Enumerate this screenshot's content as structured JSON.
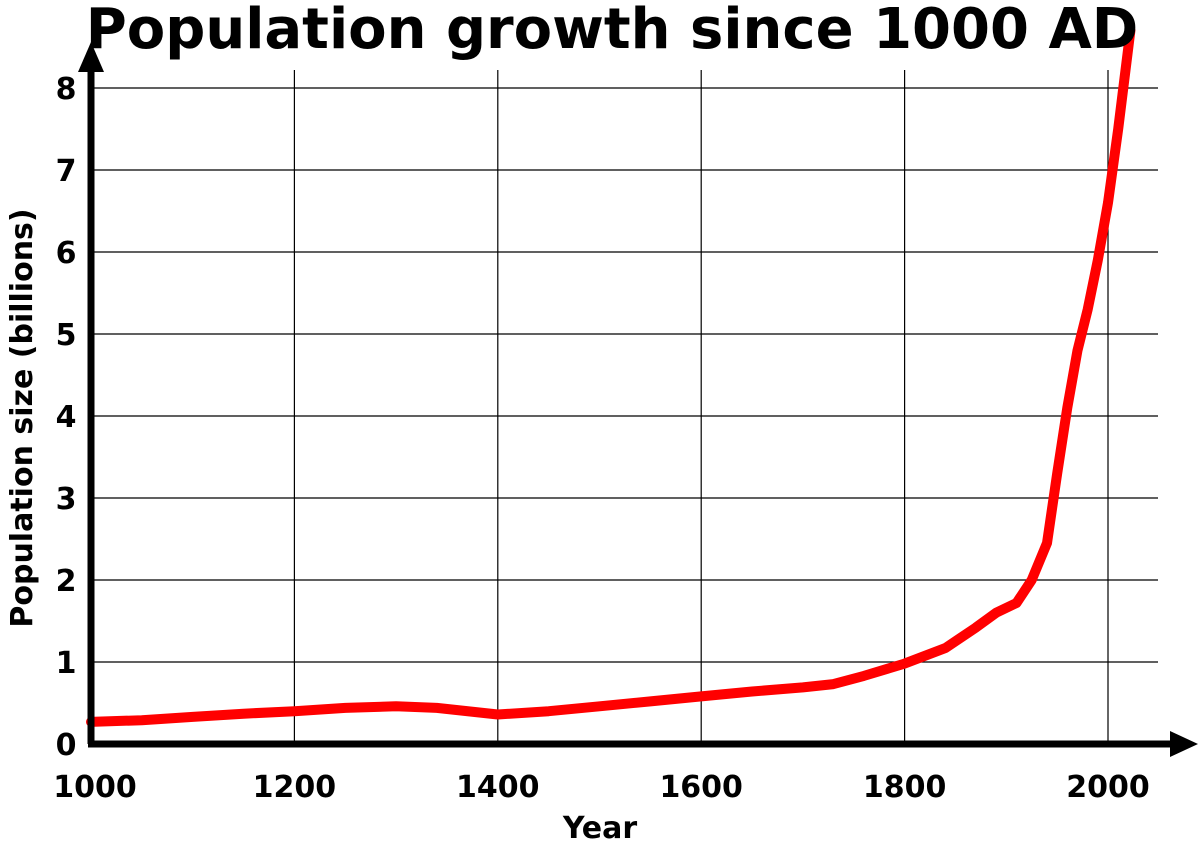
{
  "chart_data": {
    "type": "line",
    "title": "Population growth since 1000 AD",
    "xlabel": "Year",
    "ylabel": "Population size (billions)",
    "xlim": [
      1000,
      2000
    ],
    "ylim": [
      0,
      8
    ],
    "x_ticks": [
      1000,
      1200,
      1400,
      1600,
      1800,
      2000
    ],
    "y_ticks": [
      0,
      1,
      2,
      3,
      4,
      5,
      6,
      7,
      8
    ],
    "grid": true,
    "line_color": "#ff0000",
    "series": [
      {
        "x": [
          1000,
          1050,
          1100,
          1150,
          1200,
          1250,
          1300,
          1340,
          1400,
          1450,
          1500,
          1550,
          1600,
          1650,
          1700,
          1730,
          1760,
          1800,
          1840,
          1870,
          1890,
          1910,
          1925,
          1940,
          1950,
          1960,
          1970,
          1980,
          1990,
          2000,
          2010,
          2022
        ],
        "y": [
          0.27,
          0.29,
          0.33,
          0.37,
          0.4,
          0.44,
          0.46,
          0.44,
          0.36,
          0.4,
          0.46,
          0.52,
          0.58,
          0.64,
          0.69,
          0.73,
          0.83,
          0.98,
          1.17,
          1.42,
          1.6,
          1.72,
          2.0,
          2.45,
          3.3,
          4.1,
          4.8,
          5.3,
          5.9,
          6.6,
          7.5,
          8.7
        ]
      }
    ]
  }
}
